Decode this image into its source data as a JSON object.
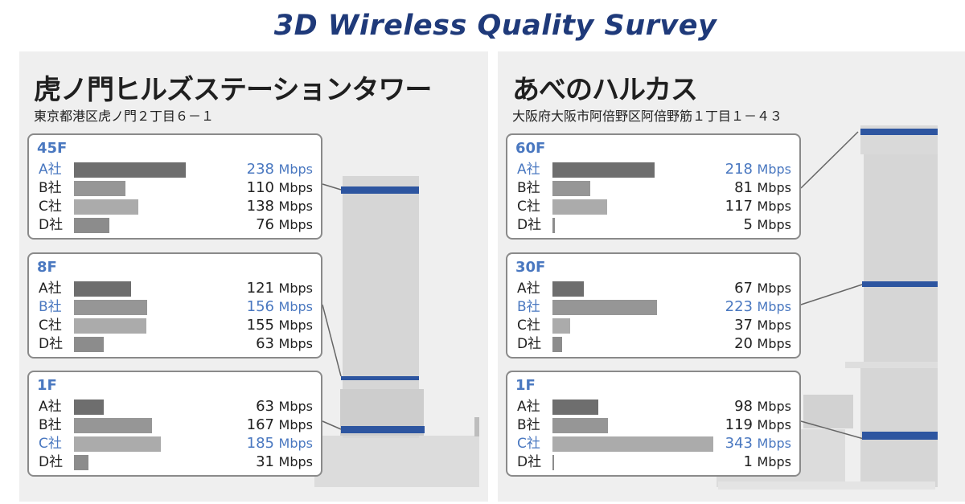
{
  "title": "3D Wireless Quality Survey",
  "unit": "Mbps",
  "max_value": 343,
  "colors": {
    "carrier_a": "#6e6e6e",
    "carrier_b": "#969696",
    "carrier_c": "#ababab",
    "carrier_d": "#8c8c8c",
    "highlight": "#4a78c0",
    "floor_band": "#2d55a0",
    "building": "#d6d6d6"
  },
  "chart_data": [
    {
      "type": "bar",
      "building": "虎ノ門ヒルズステーションタワー",
      "address": "東京都港区虎ノ門２丁目６－１",
      "categories": [
        "A社",
        "B社",
        "C社",
        "D社"
      ],
      "panels": [
        {
          "floor": "45F",
          "values": [
            238,
            110,
            138,
            76
          ],
          "best": "A社"
        },
        {
          "floor": "8F",
          "values": [
            121,
            156,
            155,
            63
          ],
          "best": "B社"
        },
        {
          "floor": "1F",
          "values": [
            63,
            167,
            185,
            31
          ],
          "best": "C社"
        }
      ]
    },
    {
      "type": "bar",
      "building": "あべのハルカス",
      "address": "大阪府大阪市阿倍野区阿倍野筋１丁目１－４３",
      "categories": [
        "A社",
        "B社",
        "C社",
        "D社"
      ],
      "panels": [
        {
          "floor": "60F",
          "values": [
            218,
            81,
            117,
            5
          ],
          "best": "A社"
        },
        {
          "floor": "30F",
          "values": [
            67,
            223,
            37,
            20
          ],
          "best": "B社"
        },
        {
          "floor": "1F",
          "values": [
            98,
            119,
            343,
            1
          ],
          "best": "C社"
        }
      ]
    }
  ]
}
